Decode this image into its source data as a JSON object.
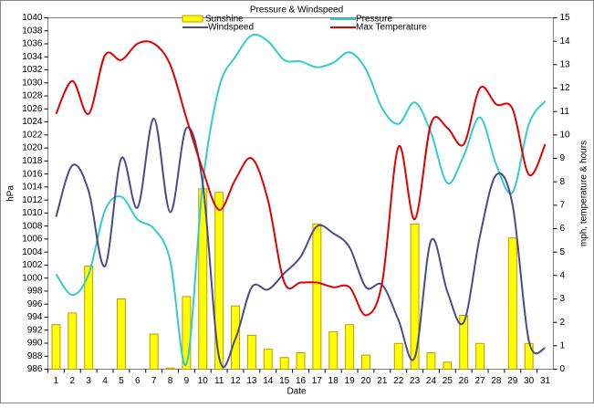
{
  "chart_data": {
    "type": "combo",
    "title": "Pressure & Windspeed",
    "x_label": "Date",
    "y_label": "hPa",
    "y2_label": "mph, temperature & hours",
    "categories": [
      "1",
      "2",
      "3",
      "4",
      "5",
      "6",
      "7",
      "8",
      "9",
      "10",
      "11",
      "12",
      "13",
      "14",
      "15",
      "16",
      "17",
      "18",
      "19",
      "20",
      "21",
      "22",
      "23",
      "24",
      "25",
      "26",
      "27",
      "28",
      "29",
      "30",
      "31"
    ],
    "ylim": [
      986,
      1040
    ],
    "yticks": [
      986,
      988,
      990,
      992,
      994,
      996,
      998,
      1000,
      1002,
      1004,
      1006,
      1008,
      1010,
      1012,
      1014,
      1016,
      1018,
      1020,
      1022,
      1024,
      1026,
      1028,
      1030,
      1032,
      1034,
      1036,
      1038,
      1040
    ],
    "y2lim": [
      0,
      15
    ],
    "y2ticks": [
      0,
      1,
      2,
      3,
      4,
      5,
      6,
      7,
      8,
      9,
      10,
      11,
      12,
      13,
      14,
      15
    ],
    "series": [
      {
        "name": "Sunshine",
        "type": "bar",
        "axis": "y2",
        "color": "#ffff00",
        "edge": "#c89600",
        "values": [
          1.9,
          2.4,
          4.4,
          0,
          3.0,
          0,
          1.5,
          0.05,
          3.1,
          7.7,
          7.55,
          2.7,
          1.45,
          0.85,
          0.5,
          0.7,
          6.2,
          1.6,
          1.9,
          0.6,
          0,
          1.1,
          6.2,
          0.7,
          0.3,
          2.3,
          1.1,
          0,
          5.6,
          1.1,
          0
        ]
      },
      {
        "name": "Pressure",
        "type": "line",
        "axis": "y",
        "color": "#33cccc",
        "values": [
          1000.6,
          997.4,
          1000.6,
          1010.4,
          1012.5,
          1009,
          1007.6,
          1002.7,
          986.8,
          1014.6,
          1029.3,
          1034,
          1037.3,
          1036.4,
          1033.5,
          1033.3,
          1032.4,
          1033.1,
          1034.7,
          1032.1,
          1026.1,
          1023.7,
          1027,
          1022.3,
          1014.6,
          1018.8,
          1024.7,
          1017.4,
          1013.2,
          1023.7,
          1027.2
        ]
      },
      {
        "name": "Windspeed",
        "type": "line",
        "axis": "y2",
        "color": "#4b4b8a",
        "values": [
          6.5,
          8.7,
          7.6,
          4.4,
          9.0,
          6.9,
          10.7,
          6.7,
          10.3,
          7.9,
          0.5,
          1.3,
          3.5,
          3.4,
          4.1,
          4.8,
          6.1,
          5.8,
          5.2,
          3.5,
          3.6,
          2.1,
          0.5,
          5.5,
          3.3,
          2.0,
          5.7,
          8.3,
          7.0,
          1.2,
          0.9
        ]
      },
      {
        "name": "Max Temperature",
        "type": "line",
        "axis": "y2",
        "color": "#e00000",
        "values": [
          10.9,
          12.3,
          10.9,
          13.4,
          13.2,
          13.9,
          13.9,
          13.0,
          10.7,
          8.5,
          6.8,
          8.1,
          9.0,
          7.2,
          3.7,
          3.7,
          3.7,
          3.5,
          3.5,
          2.3,
          3.7,
          9.5,
          6.4,
          10.5,
          10.3,
          9.6,
          12.0,
          11.3,
          11.1,
          8.3,
          9.6
        ]
      }
    ]
  }
}
